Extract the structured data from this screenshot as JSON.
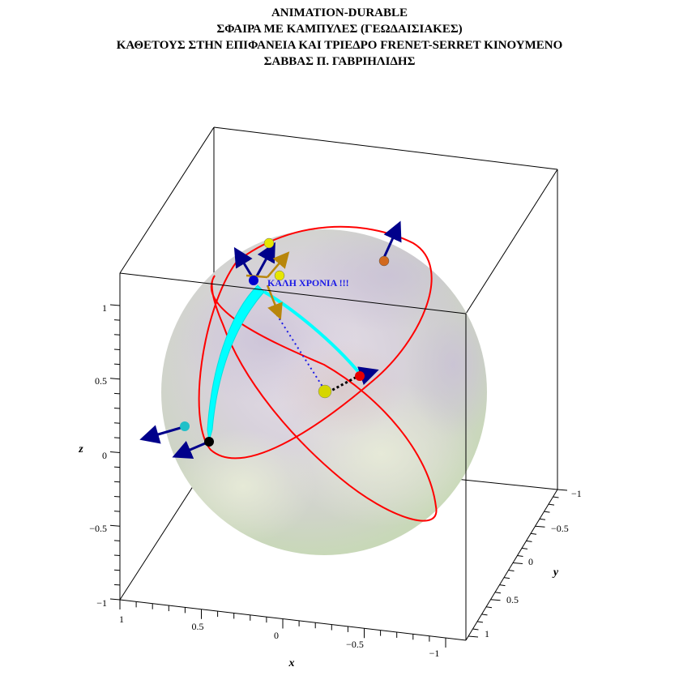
{
  "title_lines": [
    "ANIMATION-DURABLE",
    "ΣΦΑΙΡΑ ΜΕ ΚΑΜΠΥΛΕΣ (ΓΕΩΔΑΙΣΙΑΚΕΣ)",
    "ΚΑΘΕΤΟΥΣ ΣΤΗΝ ΕΠΙΦΑΝΕΙΑ ΚΑΙ ΤΡΙΕΔΡΟ FRENET-SERRET ΚΙΝΟΥΜΕΝΟ",
    "ΣΑΒΒΑΣ Π. ΓΑΒΡΙΗΛΙΔΗΣ"
  ],
  "annotation": "ΚΑΛΗ ΧΡΟΝΙΑ !!!",
  "axes": {
    "x": {
      "label": "x",
      "ticks": [
        "1",
        "0.5",
        "0",
        "−0.5",
        "−1"
      ]
    },
    "y": {
      "label": "y",
      "ticks": [
        "−1",
        "−0.5",
        "0",
        "0.5",
        "1"
      ]
    },
    "z": {
      "label": "z",
      "ticks": [
        "1",
        "0.5",
        "0",
        "−0.5",
        "−1"
      ]
    }
  },
  "colors": {
    "curves": "#ff0000",
    "geodesic": "#00ffff",
    "normal_vectors": "#00008b",
    "tangent_vector": "#b8860b",
    "annotation": "#1a1ae6"
  }
}
